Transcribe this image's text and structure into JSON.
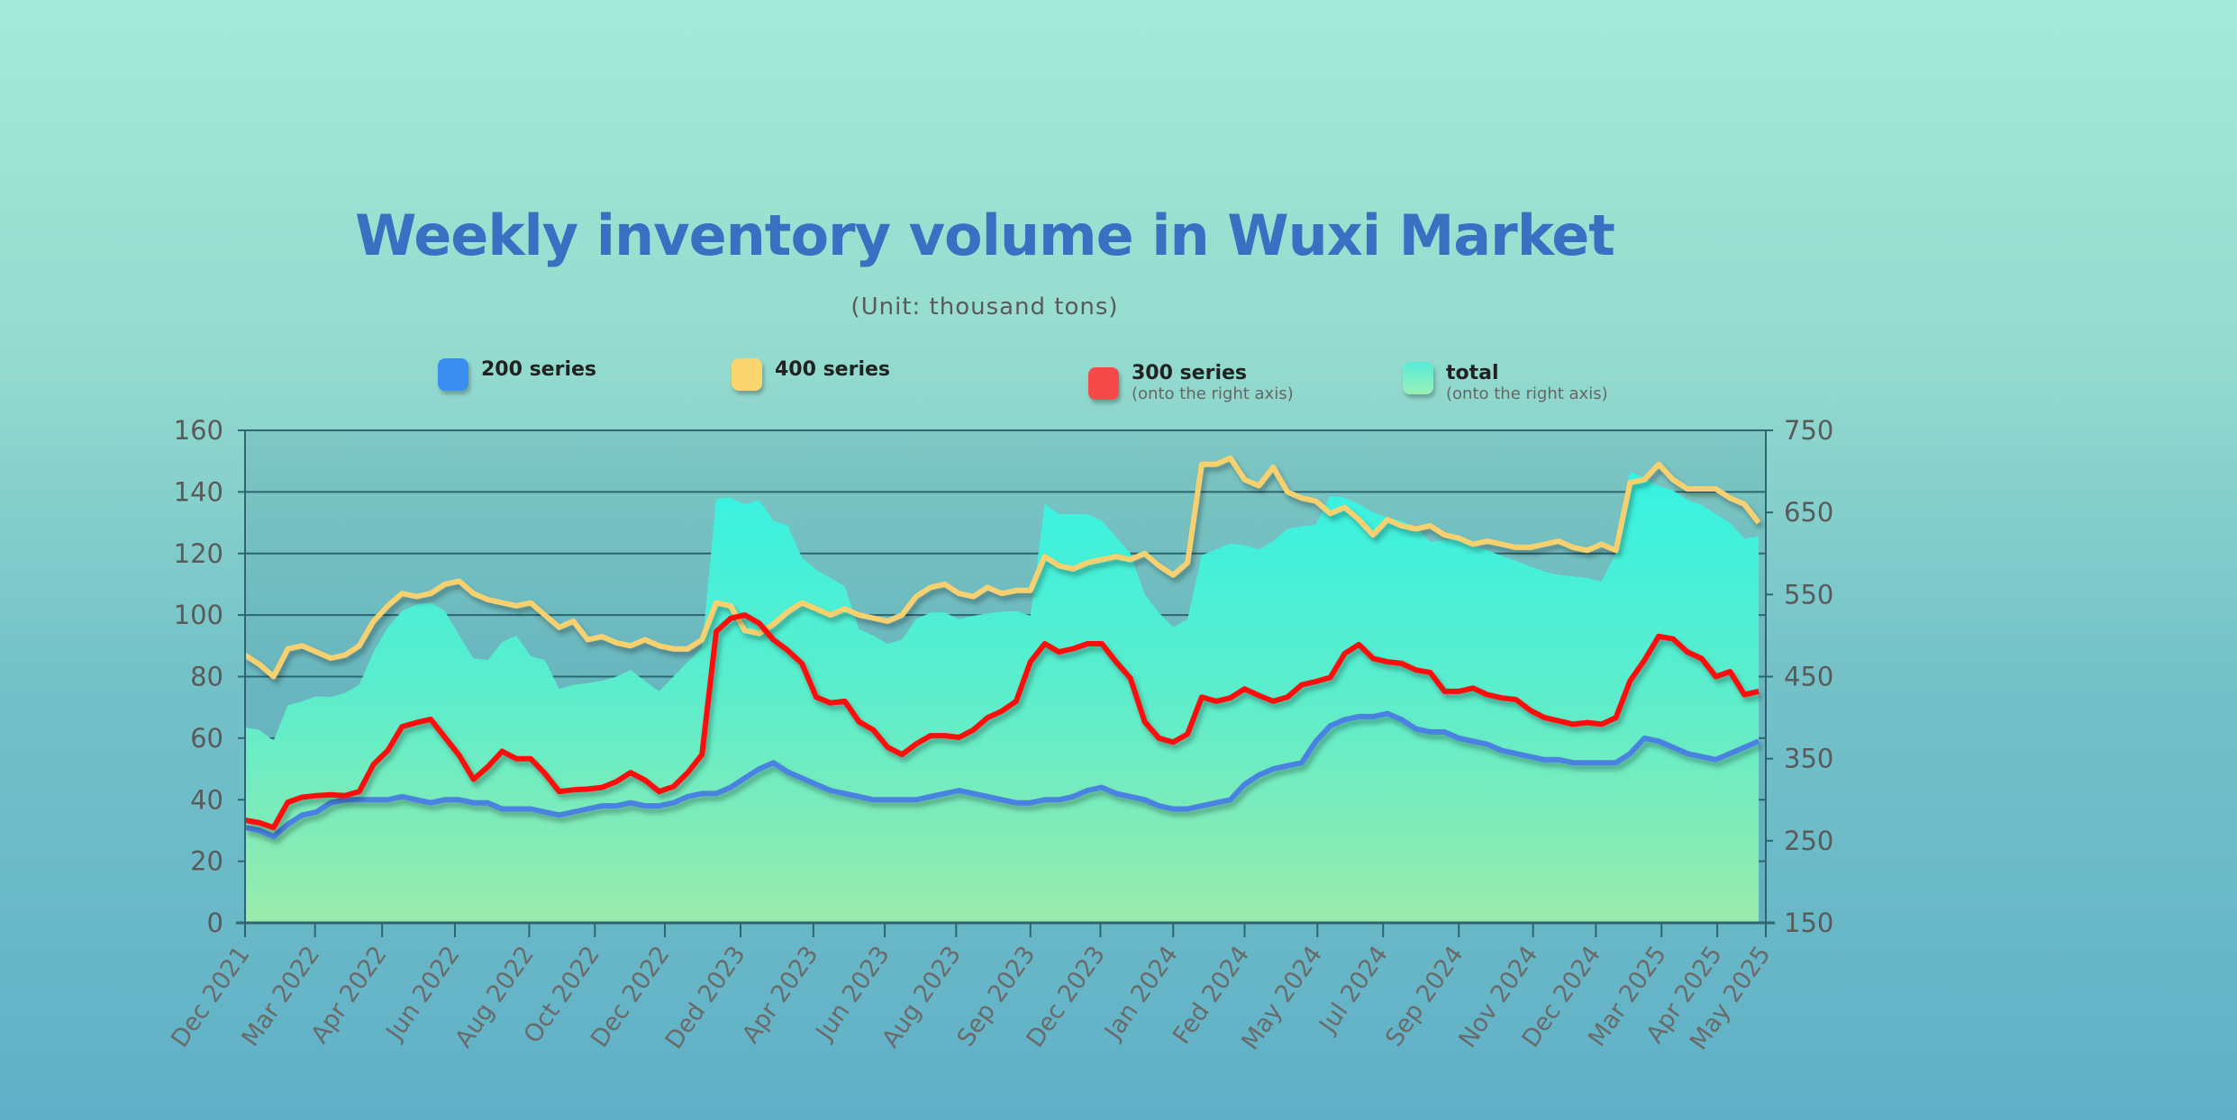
{
  "chart_data": {
    "type": "line",
    "title": "Weekly inventory volume in Wuxi Market",
    "subtitle": "(Unit: thousand tons)",
    "x_ticks": [
      "Dec 2021",
      "Mar 2022",
      "Apr 2022",
      "Jun 2022",
      "Aug 2022",
      "Oct 2022",
      "Dec 2022",
      "Ded 2023",
      "Apr 2023",
      "Jun 2023",
      "Aug 2023",
      "Sep 2023",
      "Dec 2023",
      "Jan 2024",
      "Fed 2024",
      "May 2024",
      "Jul 2024",
      "Sep 2024",
      "Nov 2024",
      "Dec 2024",
      "Mar 2025",
      "Apr 2025",
      "May 2025"
    ],
    "x_tick_week_index": [
      0,
      4.9,
      9.6,
      14.7,
      19.9,
      24.5,
      29.4,
      34.7,
      39.8,
      44.8,
      49.8,
      55,
      59.9,
      65,
      70,
      75.1,
      79.7,
      85,
      90.2,
      94.6,
      99.2,
      103.1,
      106.5
    ],
    "y_left": {
      "ylim": [
        0,
        160
      ],
      "ticks": [
        "0",
        "20",
        "40",
        "60",
        "80",
        "100",
        "120",
        "140",
        "160"
      ]
    },
    "y_right": {
      "ylim": [
        150,
        750
      ],
      "ticks": [
        "150",
        "250",
        "350",
        "450",
        "550",
        "650",
        "750"
      ]
    },
    "grid": true,
    "legend_placement": "top",
    "series": [
      {
        "name": "200 series",
        "sublabel": "",
        "axis": "left",
        "type": "line",
        "color": "#4a82e0",
        "values": [
          31,
          30,
          28,
          32,
          35,
          36,
          39,
          40,
          40,
          40,
          40,
          41,
          40,
          39,
          40,
          40,
          39,
          39,
          37,
          37,
          37,
          36,
          35,
          36,
          37,
          38,
          38,
          39,
          38,
          38,
          39,
          41,
          42,
          42,
          44,
          47,
          50,
          52,
          49,
          47,
          45,
          43,
          42,
          41,
          40,
          40,
          40,
          40,
          41,
          42,
          43,
          42,
          41,
          40,
          39,
          39,
          40,
          40,
          41,
          43,
          44,
          42,
          41,
          40,
          38,
          37,
          37,
          38,
          39,
          40,
          45,
          48,
          50,
          51,
          52,
          59,
          64,
          66,
          67,
          67,
          68,
          66,
          63,
          62,
          62,
          60,
          59,
          58,
          56,
          55,
          54,
          53,
          53,
          52,
          52,
          52,
          52,
          55,
          60,
          59,
          57,
          55,
          54,
          53,
          55,
          57,
          59
        ]
      },
      {
        "name": "400 series",
        "sublabel": "",
        "axis": "left",
        "type": "line",
        "color": "#f7d070",
        "values": [
          87,
          84,
          80,
          89,
          90,
          88,
          86,
          87,
          90,
          98,
          103,
          107,
          106,
          107,
          110,
          111,
          107,
          105,
          104,
          103,
          104,
          100,
          96,
          98,
          92,
          93,
          91,
          90,
          92,
          90,
          89,
          89,
          92,
          104,
          103,
          95,
          94,
          97,
          101,
          104,
          102,
          100,
          102,
          100,
          99,
          98,
          100,
          106,
          109,
          110,
          107,
          106,
          109,
          107,
          108,
          108,
          119,
          116,
          115,
          117,
          118,
          119,
          118,
          120,
          116,
          113,
          117,
          149,
          149,
          151,
          144,
          142,
          148,
          140,
          138,
          137,
          133,
          135,
          131,
          126,
          131,
          129,
          128,
          129,
          126,
          125,
          123,
          124,
          123,
          122,
          122,
          123,
          124,
          122,
          121,
          123,
          121,
          143,
          144,
          149,
          144,
          141,
          141,
          141,
          138,
          136,
          130
        ]
      },
      {
        "name": "300 series",
        "sublabel": "(onto the right axis)",
        "axis": "right",
        "type": "line",
        "color": "#ff1010",
        "values": [
          275,
          272,
          266,
          297,
          303,
          305,
          306,
          305,
          310,
          343,
          360,
          389,
          394,
          398,
          376,
          354,
          325,
          340,
          359,
          350,
          350,
          332,
          310,
          312,
          313,
          315,
          322,
          333,
          324,
          310,
          316,
          333,
          355,
          505,
          521,
          525,
          515,
          495,
          482,
          466,
          425,
          418,
          420,
          395,
          385,
          364,
          355,
          368,
          378,
          378,
          376,
          385,
          400,
          408,
          420,
          468,
          490,
          480,
          484,
          490,
          490,
          468,
          448,
          395,
          375,
          370,
          380,
          425,
          420,
          424,
          435,
          427,
          420,
          425,
          440,
          444,
          449,
          478,
          489,
          472,
          468,
          466,
          458,
          455,
          432,
          432,
          436,
          428,
          424,
          422,
          409,
          400,
          396,
          392,
          394,
          392,
          400,
          445,
          470,
          499,
          496,
          480,
          472,
          450,
          456,
          428,
          432
        ]
      },
      {
        "name": "total",
        "sublabel": "(onto the right axis)",
        "axis": "right",
        "type": "area",
        "color": "#46f0dc",
        "values": [
          388,
          385,
          372,
          415,
          420,
          426,
          425,
          430,
          440,
          480,
          510,
          530,
          538,
          540,
          530,
          500,
          472,
          470,
          492,
          500,
          475,
          470,
          435,
          440,
          442,
          445,
          450,
          458,
          445,
          432,
          450,
          468,
          485,
          667,
          668,
          660,
          665,
          640,
          634,
          595,
          580,
          570,
          560,
          508,
          500,
          490,
          495,
          520,
          528,
          528,
          520,
          524,
          527,
          529,
          530,
          524,
          660,
          648,
          648,
          648,
          640,
          620,
          600,
          550,
          528,
          510,
          520,
          598,
          605,
          612,
          610,
          605,
          615,
          630,
          633,
          635,
          670,
          668,
          660,
          650,
          644,
          640,
          632,
          614,
          616,
          618,
          610,
          604,
          597,
          591,
          584,
          578,
          574,
          572,
          570,
          566,
          600,
          700,
          692,
          682,
          677,
          665,
          659,
          648,
          637,
          618,
          621
        ]
      }
    ],
    "legend_swatch_colors": {
      "200 series": "#3a8ef2",
      "400 series": "#fbd56e",
      "300 series": "#f44a4a",
      "total": "#56ecd8"
    }
  }
}
